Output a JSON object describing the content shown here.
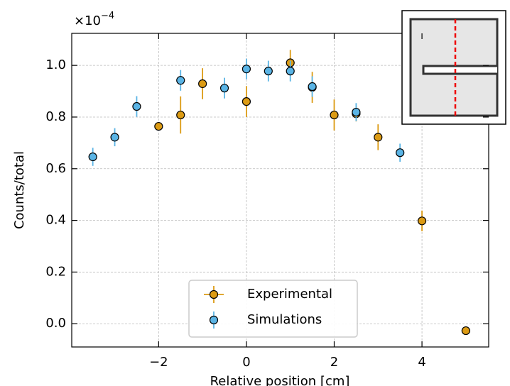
{
  "chart_data": {
    "type": "scatter",
    "x_label": "Relative position [cm]",
    "y_label": "Counts/total",
    "y_offset_label": "×10",
    "y_offset_exponent": "−4",
    "xlim": [
      -3.98,
      5.52
    ],
    "ylim": [
      -0.09,
      1.124
    ],
    "xticks": [
      {
        "value": -2,
        "label": "−2"
      },
      0,
      2,
      4
    ],
    "yticks": [
      {
        "value": 0,
        "label": "0.0"
      },
      0.2,
      0.4,
      0.6,
      0.8,
      {
        "value": 1,
        "label": "1.0"
      }
    ],
    "grid": true,
    "legend": "lower center",
    "series": [
      {
        "name": "Experimental",
        "color": "#dc9b14",
        "x": [
          -2,
          -1.5,
          -1,
          0,
          1,
          1.5,
          2,
          2.5,
          3,
          4,
          5
        ],
        "values": [
          0.764,
          0.808,
          0.929,
          0.86,
          1.01,
          0.915,
          0.808,
          0.813,
          0.722,
          0.398,
          -0.027
        ],
        "errors": [
          0.01,
          0.072,
          0.06,
          0.06,
          0.05,
          0.06,
          0.06,
          0.03,
          0.05,
          0.04,
          0.01
        ]
      },
      {
        "name": "Simulations",
        "color": "#5ab4e5",
        "x": [
          -3.5,
          -3,
          -2.5,
          -1.5,
          -0.5,
          0,
          0.5,
          1,
          1.5,
          2.5,
          3.5
        ],
        "values": [
          0.646,
          0.722,
          0.841,
          0.942,
          0.912,
          0.986,
          0.978,
          0.978,
          0.918,
          0.819,
          0.662
        ],
        "errors": [
          0.035,
          0.035,
          0.04,
          0.04,
          0.04,
          0.04,
          0.04,
          0.04,
          0.04,
          0.035,
          0.035
        ]
      }
    ]
  }
}
